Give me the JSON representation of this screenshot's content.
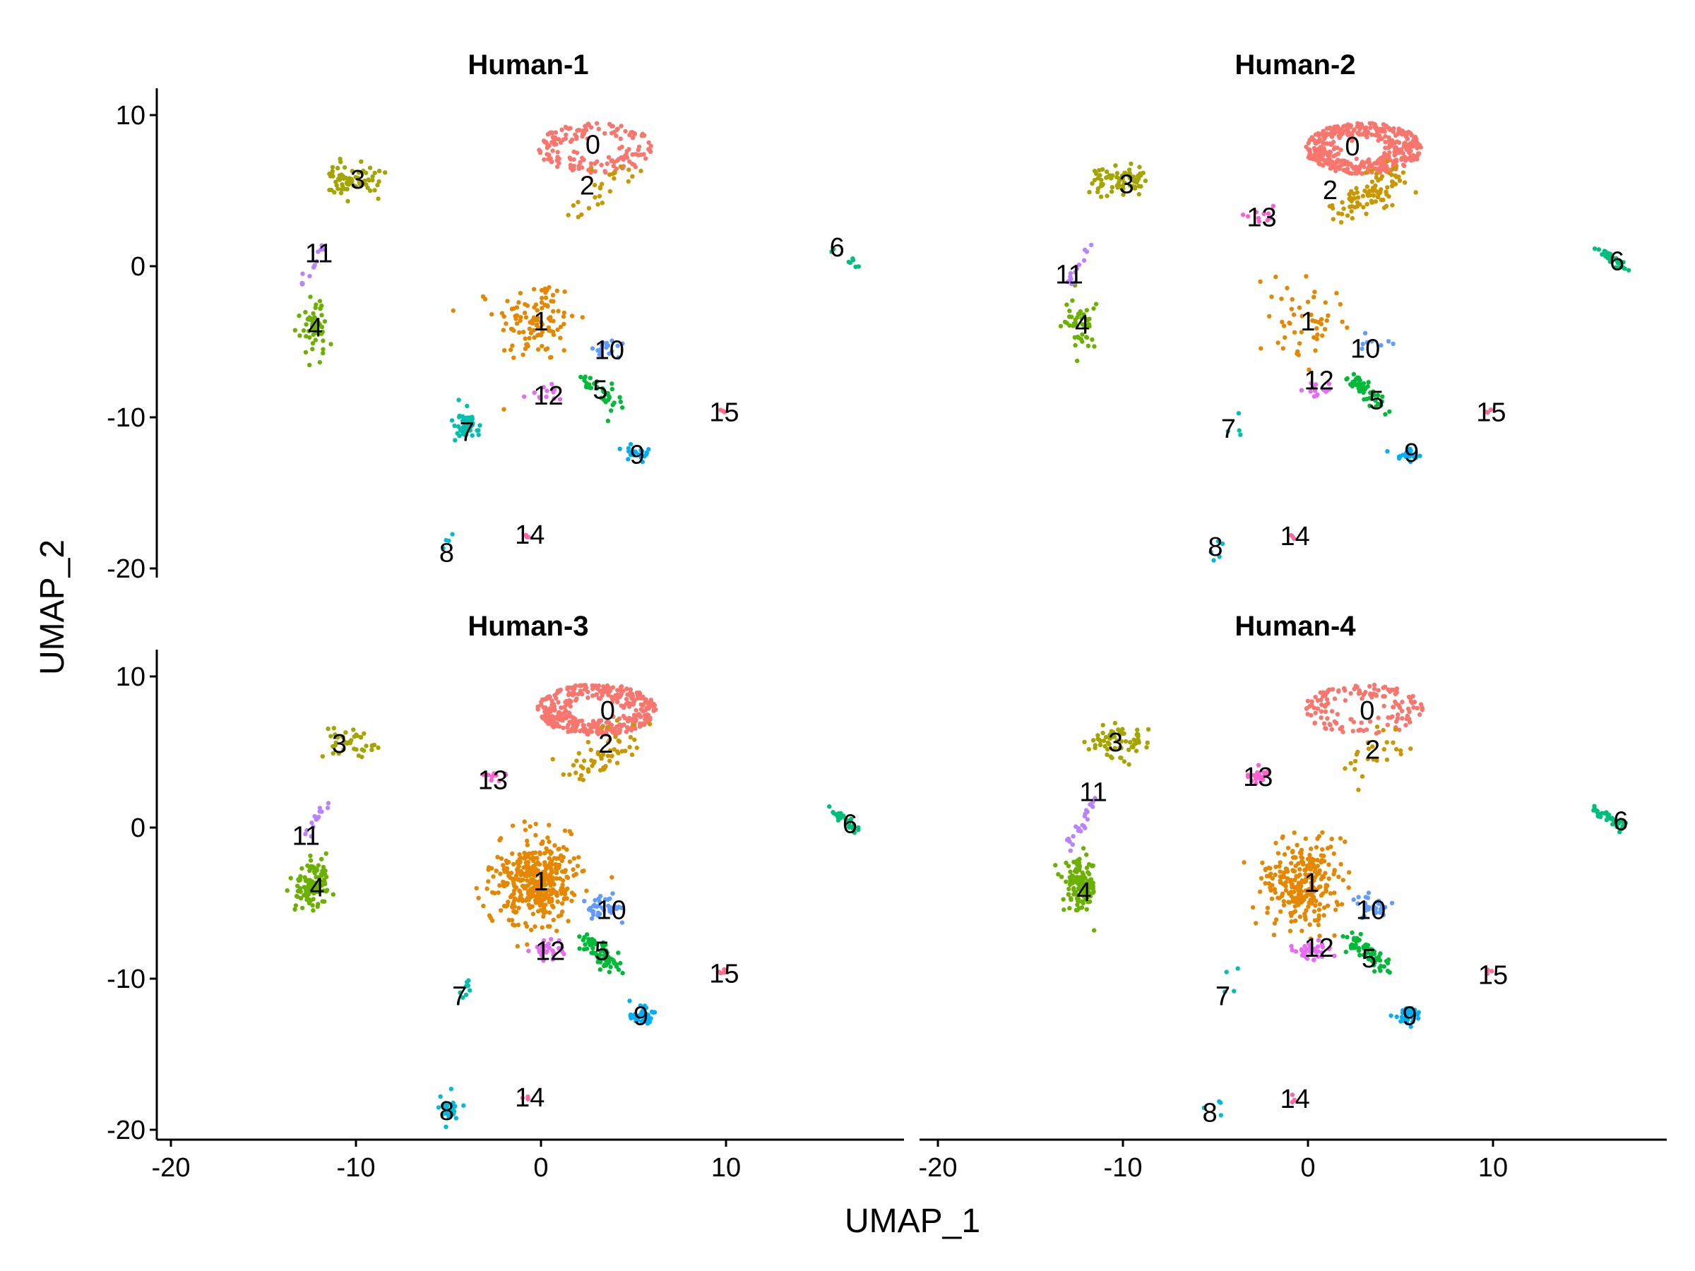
{
  "chart_data": {
    "type": "scatter",
    "xlabel": "UMAP_1",
    "ylabel": "UMAP_2",
    "xlim": [
      -21,
      20
    ],
    "ylim": [
      -21,
      12
    ],
    "xticks": [
      -20,
      -10,
      0,
      10
    ],
    "yticks": [
      -20,
      -10,
      0,
      10
    ],
    "xtick_labels": [
      "-20",
      "-10",
      "0",
      "10"
    ],
    "ytick_labels": [
      "-20",
      "-10",
      "0",
      "10"
    ],
    "grid": false,
    "legend": "none",
    "cluster_colors": {
      "0": "#F8766D",
      "1": "#E58700",
      "2": "#C99800",
      "3": "#A3A500",
      "4": "#6BB100",
      "5": "#00BA38",
      "6": "#00BF7D",
      "7": "#00C0AF",
      "8": "#00BCD8",
      "9": "#00B0F6",
      "10": "#619CFF",
      "11": "#B983FF",
      "12": "#E76BF3",
      "13": "#FD61D1",
      "14": "#FF67A4",
      "15": "#FF6C91"
    },
    "cluster_label_colors_note_free": true,
    "centers": {
      "0": [
        3.0,
        7.8
      ],
      "1": [
        -0.3,
        -3.8
      ],
      "2": [
        3.0,
        5.3
      ],
      "3": [
        -10.5,
        5.7
      ],
      "4": [
        -12.3,
        -3.9
      ],
      "5": [
        3.0,
        -8.2
      ],
      "6": [
        16.2,
        0.6
      ],
      "7": [
        -4.1,
        -10.6
      ],
      "8": [
        -5.0,
        -18.6
      ],
      "9": [
        5.4,
        -12.4
      ],
      "10": [
        3.4,
        -5.3
      ],
      "11": [
        -12.5,
        -0.4
      ],
      "12": [
        0.3,
        -8.2
      ],
      "13": [
        -2.6,
        3.4
      ],
      "14": [
        -0.8,
        -17.9
      ],
      "15": [
        9.8,
        -9.6
      ]
    },
    "panels": [
      {
        "title": "Human-1",
        "clusters": [
          {
            "id": "0",
            "n": 160,
            "label": [
              2.8,
              8.1
            ]
          },
          {
            "id": "1",
            "n": 110,
            "label": [
              0.0,
              -3.6
            ]
          },
          {
            "id": "2",
            "n": 25,
            "label": [
              2.5,
              5.4
            ]
          },
          {
            "id": "3",
            "n": 70,
            "label": [
              -9.9,
              5.8
            ]
          },
          {
            "id": "4",
            "n": 50,
            "label": [
              -12.2,
              -4.0
            ]
          },
          {
            "id": "5",
            "n": 40,
            "label": [
              3.2,
              -8.1
            ]
          },
          {
            "id": "6",
            "n": 8,
            "label": [
              16.0,
              1.3
            ]
          },
          {
            "id": "7",
            "n": 60,
            "label": [
              -4.0,
              -10.9
            ]
          },
          {
            "id": "8",
            "n": 4,
            "label": [
              -5.1,
              -18.9
            ]
          },
          {
            "id": "9",
            "n": 20,
            "label": [
              5.2,
              -12.4
            ]
          },
          {
            "id": "10",
            "n": 18,
            "label": [
              3.7,
              -5.5
            ]
          },
          {
            "id": "11",
            "n": 12,
            "label": [
              -12.0,
              0.9
            ]
          },
          {
            "id": "12",
            "n": 12,
            "label": [
              0.4,
              -8.5
            ]
          },
          {
            "id": "14",
            "n": 3,
            "label": [
              -0.6,
              -17.7
            ]
          },
          {
            "id": "15",
            "n": 3,
            "label": [
              9.9,
              -9.6
            ]
          }
        ]
      },
      {
        "title": "Human-2",
        "clusters": [
          {
            "id": "0",
            "n": 420,
            "label": [
              2.4,
              8.0
            ]
          },
          {
            "id": "1",
            "n": 50,
            "label": [
              0.0,
              -3.6
            ]
          },
          {
            "id": "2",
            "n": 90,
            "label": [
              1.2,
              5.1
            ]
          },
          {
            "id": "3",
            "n": 80,
            "label": [
              -9.8,
              5.5
            ]
          },
          {
            "id": "4",
            "n": 45,
            "label": [
              -12.2,
              -3.8
            ]
          },
          {
            "id": "5",
            "n": 50,
            "label": [
              3.7,
              -8.8
            ]
          },
          {
            "id": "6",
            "n": 30,
            "label": [
              16.7,
              0.4
            ]
          },
          {
            "id": "7",
            "n": 4,
            "label": [
              -4.3,
              -10.7
            ]
          },
          {
            "id": "8",
            "n": 5,
            "label": [
              -5.0,
              -18.5
            ]
          },
          {
            "id": "9",
            "n": 18,
            "label": [
              5.6,
              -12.3
            ]
          },
          {
            "id": "10",
            "n": 8,
            "label": [
              3.1,
              -5.4
            ]
          },
          {
            "id": "11",
            "n": 14,
            "label": [
              -12.9,
              -0.5
            ]
          },
          {
            "id": "12",
            "n": 14,
            "label": [
              0.6,
              -7.5
            ]
          },
          {
            "id": "13",
            "n": 10,
            "label": [
              -2.5,
              3.3
            ]
          },
          {
            "id": "14",
            "n": 3,
            "label": [
              -0.7,
              -17.8
            ]
          },
          {
            "id": "15",
            "n": 3,
            "label": [
              9.9,
              -9.6
            ]
          }
        ]
      },
      {
        "title": "Human-3",
        "clusters": [
          {
            "id": "0",
            "n": 380,
            "label": [
              3.6,
              7.8
            ]
          },
          {
            "id": "1",
            "n": 420,
            "label": [
              0.0,
              -3.5
            ]
          },
          {
            "id": "2",
            "n": 60,
            "label": [
              3.5,
              5.6
            ]
          },
          {
            "id": "3",
            "n": 40,
            "label": [
              -10.9,
              5.6
            ]
          },
          {
            "id": "4",
            "n": 110,
            "label": [
              -12.1,
              -3.9
            ]
          },
          {
            "id": "5",
            "n": 70,
            "label": [
              3.3,
              -8.1
            ]
          },
          {
            "id": "6",
            "n": 30,
            "label": [
              16.7,
              0.3
            ]
          },
          {
            "id": "7",
            "n": 8,
            "label": [
              -4.4,
              -11.1
            ]
          },
          {
            "id": "8",
            "n": 30,
            "label": [
              -5.1,
              -18.7
            ]
          },
          {
            "id": "9",
            "n": 40,
            "label": [
              5.4,
              -12.4
            ]
          },
          {
            "id": "10",
            "n": 40,
            "label": [
              3.8,
              -5.4
            ]
          },
          {
            "id": "11",
            "n": 14,
            "label": [
              -12.7,
              -0.5
            ]
          },
          {
            "id": "12",
            "n": 30,
            "label": [
              0.5,
              -8.1
            ]
          },
          {
            "id": "13",
            "n": 10,
            "label": [
              -2.6,
              3.2
            ]
          },
          {
            "id": "14",
            "n": 4,
            "label": [
              -0.6,
              -17.8
            ]
          },
          {
            "id": "15",
            "n": 4,
            "label": [
              9.9,
              -9.6
            ]
          }
        ]
      },
      {
        "title": "Human-4",
        "clusters": [
          {
            "id": "0",
            "n": 140,
            "label": [
              3.2,
              7.8
            ]
          },
          {
            "id": "1",
            "n": 280,
            "label": [
              0.2,
              -3.6
            ]
          },
          {
            "id": "2",
            "n": 25,
            "label": [
              3.5,
              5.2
            ]
          },
          {
            "id": "3",
            "n": 70,
            "label": [
              -10.4,
              5.7
            ]
          },
          {
            "id": "4",
            "n": 130,
            "label": [
              -12.1,
              -4.2
            ]
          },
          {
            "id": "5",
            "n": 60,
            "label": [
              3.3,
              -8.6
            ]
          },
          {
            "id": "6",
            "n": 40,
            "label": [
              16.9,
              0.5
            ]
          },
          {
            "id": "7",
            "n": 4,
            "label": [
              -4.6,
              -11.1
            ]
          },
          {
            "id": "8",
            "n": 4,
            "label": [
              -5.3,
              -18.8
            ]
          },
          {
            "id": "9",
            "n": 35,
            "label": [
              5.5,
              -12.4
            ]
          },
          {
            "id": "10",
            "n": 30,
            "label": [
              3.4,
              -5.4
            ]
          },
          {
            "id": "11",
            "n": 25,
            "label": [
              -11.6,
              2.4
            ]
          },
          {
            "id": "12",
            "n": 35,
            "label": [
              0.6,
              -7.9
            ]
          },
          {
            "id": "13",
            "n": 20,
            "label": [
              -2.7,
              3.4
            ]
          },
          {
            "id": "14",
            "n": 3,
            "label": [
              -0.7,
              -17.9
            ]
          },
          {
            "id": "15",
            "n": 3,
            "label": [
              10.0,
              -9.7
            ]
          }
        ]
      }
    ]
  }
}
